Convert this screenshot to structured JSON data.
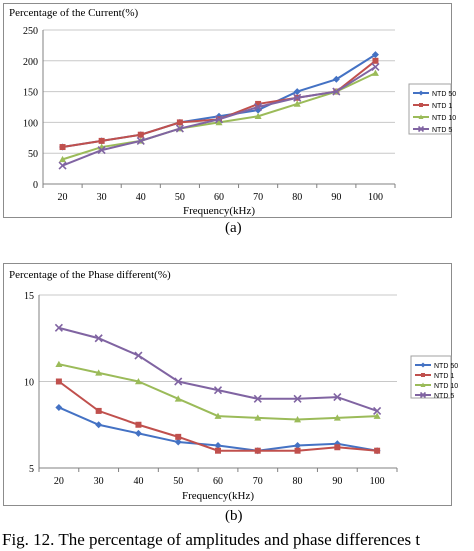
{
  "caption": "Fig. 12. The percentage of amplitudes and phase differences t",
  "chart_data": [
    {
      "type": "line",
      "title": "Percentage of the Current(%)",
      "xlabel": "Frequency(kHz)",
      "ylabel": "",
      "sublabel": "(a)",
      "categories": [
        "20",
        "30",
        "40",
        "50",
        "60",
        "70",
        "80",
        "90",
        "100"
      ],
      "ylim": [
        0,
        250
      ],
      "yticks": [
        "0",
        "50",
        "100",
        "150",
        "200",
        "250"
      ],
      "grid": true,
      "legend_position": "right",
      "series": [
        {
          "name": "NTD 50",
          "color": "#4472c4",
          "marker": "diamond",
          "values": [
            60,
            70,
            80,
            100,
            110,
            120,
            150,
            170,
            210
          ]
        },
        {
          "name": "NTD 1",
          "color": "#c0504d",
          "marker": "square",
          "values": [
            60,
            70,
            80,
            100,
            105,
            130,
            140,
            150,
            200
          ]
        },
        {
          "name": "NTD 10",
          "color": "#9bbb59",
          "marker": "triangle",
          "values": [
            40,
            60,
            70,
            90,
            100,
            110,
            130,
            150,
            180
          ]
        },
        {
          "name": "NTD 5",
          "color": "#8064a2",
          "marker": "x",
          "values": [
            30,
            55,
            70,
            90,
            105,
            125,
            140,
            150,
            190
          ]
        }
      ]
    },
    {
      "type": "line",
      "title": "Percentage of the Phase different(%)",
      "xlabel": "Frequency(kHz)",
      "ylabel": "",
      "sublabel": "(b)",
      "categories": [
        "20",
        "30",
        "40",
        "50",
        "60",
        "70",
        "80",
        "90",
        "100"
      ],
      "ylim": [
        5,
        15
      ],
      "yticks": [
        "5",
        "10",
        "15"
      ],
      "grid": true,
      "legend_position": "right",
      "series": [
        {
          "name": "NTD 50",
          "color": "#4472c4",
          "marker": "diamond",
          "values": [
            8.5,
            7.5,
            7.0,
            6.5,
            6.3,
            6.0,
            6.3,
            6.4,
            6.0
          ]
        },
        {
          "name": "NTD 1",
          "color": "#c0504d",
          "marker": "square",
          "values": [
            10.0,
            8.3,
            7.5,
            6.8,
            6.0,
            6.0,
            6.0,
            6.2,
            6.0
          ]
        },
        {
          "name": "NTD 10",
          "color": "#9bbb59",
          "marker": "triangle",
          "values": [
            11.0,
            10.5,
            10.0,
            9.0,
            8.0,
            7.9,
            7.8,
            7.9,
            8.0
          ]
        },
        {
          "name": "NTD 5",
          "color": "#8064a2",
          "marker": "x",
          "values": [
            13.1,
            12.5,
            11.5,
            10.0,
            9.5,
            9.0,
            9.0,
            9.1,
            8.3
          ]
        }
      ]
    }
  ]
}
